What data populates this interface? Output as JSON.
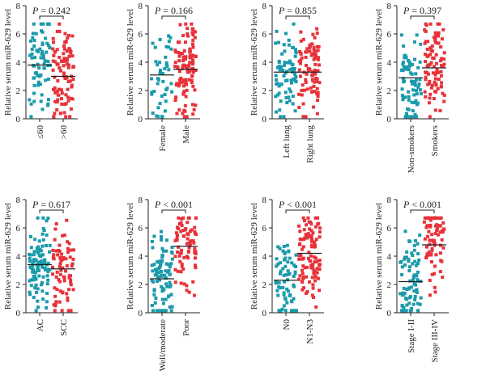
{
  "colors": {
    "group1": "#1a9aab",
    "group2": "#e8323a"
  },
  "ylabel": "Relative serum miR-629 level",
  "y_ticks": [
    "0",
    "2",
    "4",
    "6",
    "8"
  ],
  "chart_data": [
    {
      "type": "scatter",
      "title": "",
      "ylabel": "Relative serum miR-629 level",
      "ylim": [
        0,
        8
      ],
      "categories": [
        "≤60",
        ">60"
      ],
      "pvalue": {
        "prefix": "P",
        "rest": " = 0.242"
      },
      "means": [
        3.8,
        3.0
      ],
      "n": [
        70,
        100
      ]
    },
    {
      "type": "scatter",
      "title": "",
      "ylabel": "Relative serum miR-629 level",
      "ylim": [
        0,
        8
      ],
      "categories": [
        "Female",
        "Male"
      ],
      "pvalue": {
        "prefix": "P",
        "rest": " = 0.166"
      },
      "means": [
        3.1,
        3.5
      ],
      "n": [
        45,
        115
      ]
    },
    {
      "type": "scatter",
      "title": "",
      "ylabel": "Relative serum miR-629 level",
      "ylim": [
        0,
        8
      ],
      "categories": [
        "Left lung",
        "Right lung"
      ],
      "pvalue": {
        "prefix": "P",
        "rest": " = 0.855"
      },
      "means": [
        3.3,
        3.3
      ],
      "n": [
        75,
        90
      ]
    },
    {
      "type": "scatter",
      "title": "",
      "ylabel": "Relative serum miR-629 level",
      "ylim": [
        0,
        8
      ],
      "categories": [
        "Non-smokers",
        "Smokers"
      ],
      "pvalue": {
        "prefix": "P",
        "rest": " = 0.397"
      },
      "means": [
        2.9,
        3.6
      ],
      "n": [
        75,
        95
      ]
    },
    {
      "type": "scatter",
      "title": "",
      "ylabel": "Relative serum miR-629 level",
      "ylim": [
        0,
        8
      ],
      "categories": [
        "AC",
        "SCC"
      ],
      "pvalue": {
        "prefix": "P",
        "rest": " = 0.617"
      },
      "means": [
        3.4,
        3.1
      ],
      "n": [
        95,
        75
      ]
    },
    {
      "type": "scatter",
      "title": "",
      "ylabel": "Relative serum miR-629 level",
      "ylim": [
        0,
        8
      ],
      "categories": [
        "Well/moderate",
        "Poor"
      ],
      "pvalue": {
        "prefix": "P",
        "rest": " < 0.001"
      },
      "means": [
        2.4,
        4.7
      ],
      "n": [
        90,
        75
      ]
    },
    {
      "type": "scatter",
      "title": "",
      "ylabel": "Relative serum miR-629 level",
      "ylim": [
        0,
        8
      ],
      "categories": [
        "N0",
        "N1-N3"
      ],
      "pvalue": {
        "prefix": "P",
        "rest": " < 0.001"
      },
      "means": [
        2.3,
        4.2
      ],
      "n": [
        70,
        110
      ]
    },
    {
      "type": "scatter",
      "title": "",
      "ylabel": "Relative serum miR-629 level",
      "ylim": [
        0,
        8
      ],
      "categories": [
        "Stage I-II",
        "Stage III-IV"
      ],
      "pvalue": {
        "prefix": "P",
        "rest": " < 0.001"
      },
      "means": [
        2.2,
        4.8
      ],
      "n": [
        85,
        75
      ]
    }
  ]
}
